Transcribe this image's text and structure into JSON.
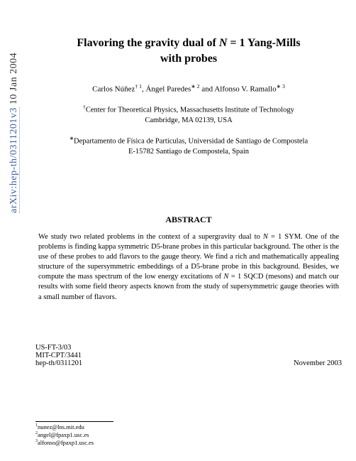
{
  "arxiv": {
    "id_link": "arXiv:hep-th/0311201v3",
    "date": "  10 Jan 2004"
  },
  "title": {
    "pre": "Flavoring the gravity dual of ",
    "cal": "N",
    "eq": " = 1",
    "post": " Yang-Mills",
    "line2": "with probes"
  },
  "authors": {
    "a1": "Carlos Núñez",
    "a1_marks": "† 1",
    "sep1": ", ",
    "a2": "Ángel Paredes",
    "a2_marks": "∗ 2",
    "sep2": " and ",
    "a3": "Alfonso V. Ramallo",
    "a3_marks": "∗ 3"
  },
  "affil1": {
    "mark": "†",
    "line1": "Center for Theoretical Physics, Massachusetts Institute of Technology",
    "line2": "Cambridge, MA 02139, USA"
  },
  "affil2": {
    "mark": "∗",
    "line1": "Departamento de Física de Partículas, Universidad de Santiago de Compostela",
    "line2": "E-15782 Santiago de Compostela, Spain"
  },
  "abstract_label": "ABSTRACT",
  "abstract": {
    "p1a": "We study two related problems in the context of a supergravity dual to ",
    "cal": "N",
    "p1b": " = 1 SYM. One of the problems is finding kappa symmetric D5-brane probes in this particular background. The other is the use of these probes to add flavors to the gauge theory. We find a rich and mathematically appealing structure of the supersymmetric embeddings of a D5-brane probe in this background. Besides, we compute the mass spectrum of the low energy excitations of ",
    "cal2": "N",
    "p1c": " = 1 SQCD (mesons) and match our results with some field theory aspects known from the study of supersymmetric gauge theories with a small number of flavors."
  },
  "ids": {
    "l1": "US-FT-3/03",
    "l2": "MIT-CPT/3441",
    "l3": "hep-th/0311201",
    "date": "November 2003"
  },
  "footnotes": {
    "f1": "nunez@lns.mit.edu",
    "f2": "angel@fpaxp1.usc.es",
    "f3": "alfonso@fpaxp1.usc.es"
  }
}
